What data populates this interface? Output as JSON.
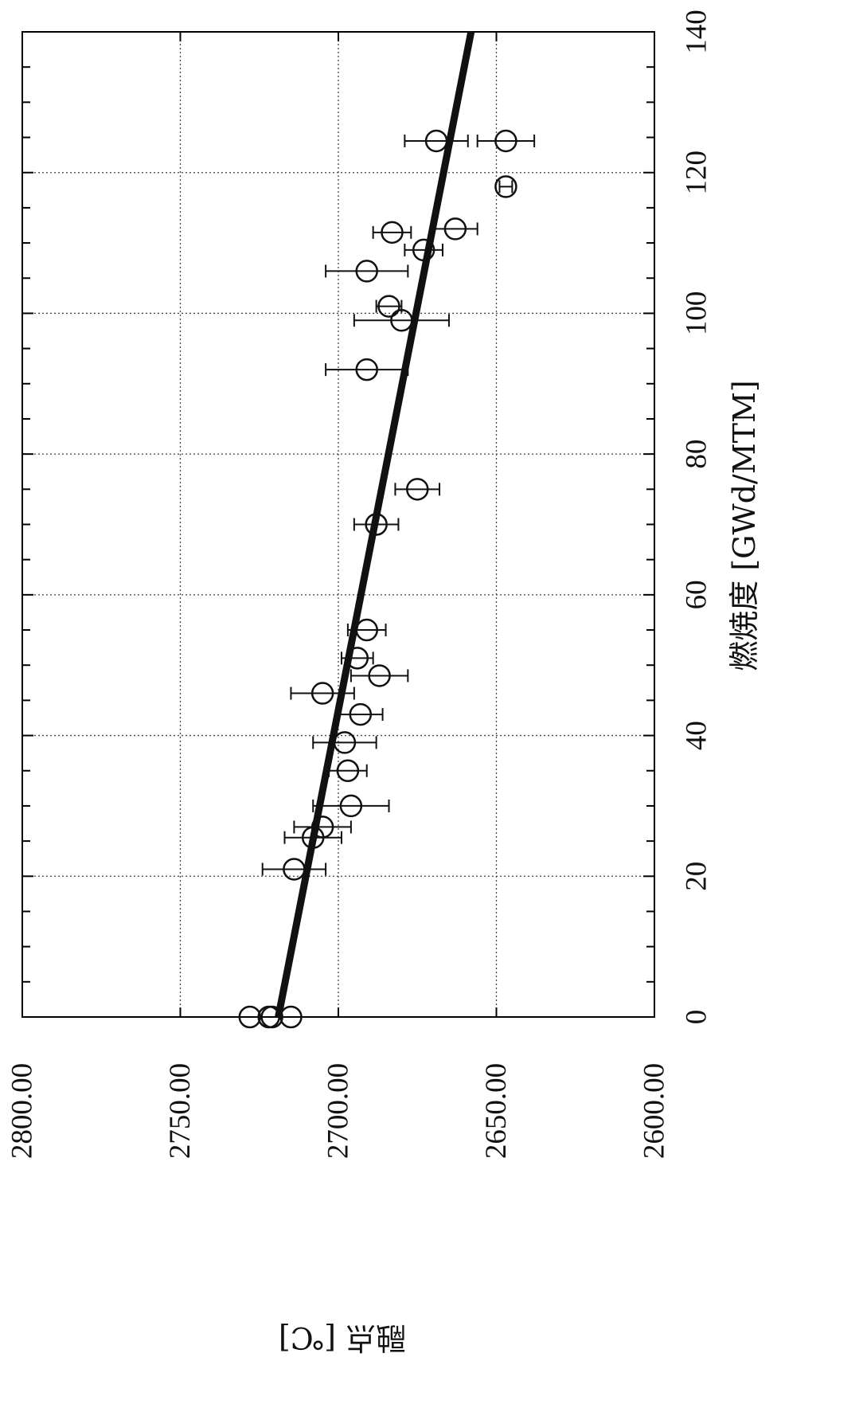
{
  "chart_data": {
    "type": "scatter",
    "orientation": "rotated-90-clockwise",
    "xlabel": "燃焼度 [GWd/MTM]",
    "ylabel": "融点 [℃]",
    "xlim": [
      0,
      140
    ],
    "ylim": [
      2600,
      2800
    ],
    "xticks": [
      "0",
      "20",
      "40",
      "60",
      "80",
      "100",
      "120",
      "140"
    ],
    "yticks": [
      "2600.00",
      "2650.00",
      "2700.00",
      "2750.00",
      "2800.00"
    ],
    "grid": true,
    "series": [
      {
        "style": "open-circle-with-error-bars",
        "points": [
          {
            "x": 0,
            "y": 2728,
            "err": 0
          },
          {
            "x": 0,
            "y": 2722,
            "err": 0
          },
          {
            "x": 0,
            "y": 2721,
            "err": 0
          },
          {
            "x": 0,
            "y": 2715,
            "err": 0
          },
          {
            "x": 21,
            "y": 2714,
            "err": 10
          },
          {
            "x": 25.5,
            "y": 2708,
            "err": 9
          },
          {
            "x": 27,
            "y": 2705,
            "err": 9
          },
          {
            "x": 30,
            "y": 2696,
            "err": 12
          },
          {
            "x": 35,
            "y": 2697,
            "err": 6
          },
          {
            "x": 39,
            "y": 2698,
            "err": 10
          },
          {
            "x": 43,
            "y": 2693,
            "err": 7
          },
          {
            "x": 46,
            "y": 2705,
            "err": 10
          },
          {
            "x": 48.5,
            "y": 2687,
            "err": 9
          },
          {
            "x": 51,
            "y": 2694,
            "err": 5
          },
          {
            "x": 55,
            "y": 2691,
            "err": 6
          },
          {
            "x": 70,
            "y": 2688,
            "err": 7
          },
          {
            "x": 75,
            "y": 2675,
            "err": 7
          },
          {
            "x": 92,
            "y": 2691,
            "err": 13
          },
          {
            "x": 99,
            "y": 2680,
            "err": 15
          },
          {
            "x": 101,
            "y": 2684,
            "err": 4
          },
          {
            "x": 106,
            "y": 2691,
            "err": 13
          },
          {
            "x": 109,
            "y": 2673,
            "err": 6
          },
          {
            "x": 111.5,
            "y": 2683,
            "err": 6
          },
          {
            "x": 112,
            "y": 2663,
            "err": 7
          },
          {
            "x": 118,
            "y": 2647,
            "err": 2
          },
          {
            "x": 124.5,
            "y": 2669,
            "err": 10
          },
          {
            "x": 124.5,
            "y": 2647,
            "err": 9
          }
        ]
      },
      {
        "style": "fit-line",
        "points": [
          {
            "x": 0,
            "y": 2719
          },
          {
            "x": 140,
            "y": 2658
          }
        ]
      }
    ]
  }
}
